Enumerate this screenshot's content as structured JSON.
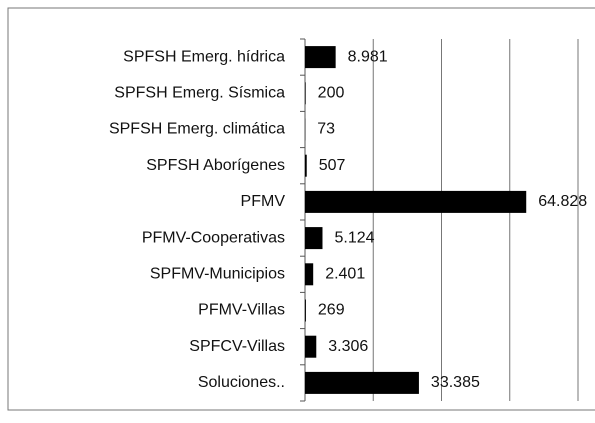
{
  "chart_data": {
    "type": "bar",
    "orientation": "horizontal",
    "categories": [
      "SPFSH Emerg. hídrica",
      "SPFSH Emerg. Sísmica",
      "SPFSH Emerg. climática",
      "SPFSH Aborígenes",
      "PFMV",
      "PFMV-Cooperativas",
      "SPFMV-Municipios",
      "PFMV-Villas",
      "SPFCV-Villas",
      "Soluciones.."
    ],
    "values": [
      8981,
      200,
      73,
      507,
      64828,
      5124,
      2401,
      269,
      3306,
      33385
    ],
    "value_labels": [
      "8.981",
      "200",
      "73",
      "507",
      "64.828",
      "5.124",
      "2.401",
      "269",
      "3.306",
      "33.385"
    ],
    "color": "#000000",
    "xlim": [
      0,
      80000
    ],
    "xticks": [
      0,
      20000,
      40000,
      60000,
      80000
    ],
    "grid": true
  }
}
